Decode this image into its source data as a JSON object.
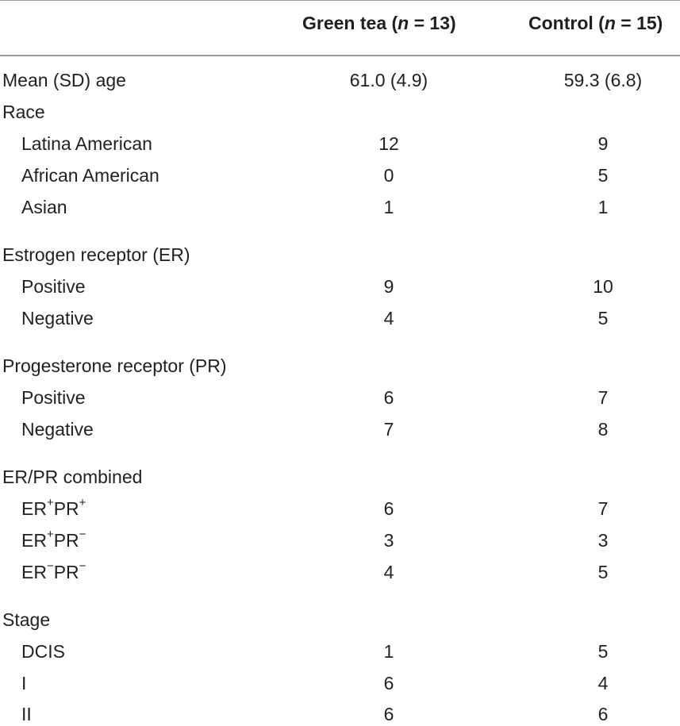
{
  "header": {
    "green_tea_label": "Green tea (",
    "green_tea_n_var": "n",
    "green_tea_n_value": " = 13)",
    "control_label": "Control (",
    "control_n_var": "n",
    "control_n_value": " = 15)"
  },
  "rows": [
    {
      "label": "Mean (SD) age",
      "green": "61.0 (4.9)",
      "control": "59.3 (6.8)"
    },
    {
      "label": "Race",
      "green": "",
      "control": ""
    },
    {
      "label": "Latina American",
      "green": "12",
      "control": "9"
    },
    {
      "label": "African American",
      "green": "0",
      "control": "5"
    },
    {
      "label": "Asian",
      "green": "1",
      "control": "1"
    },
    {
      "label": "Estrogen receptor (ER)",
      "green": "",
      "control": ""
    },
    {
      "label": "Positive",
      "green": "9",
      "control": "10"
    },
    {
      "label": "Negative",
      "green": "4",
      "control": "5"
    },
    {
      "label": "Progesterone receptor (PR)",
      "green": "",
      "control": ""
    },
    {
      "label": "Positive",
      "green": "6",
      "control": "7"
    },
    {
      "label": "Negative",
      "green": "7",
      "control": "8"
    },
    {
      "label": "ER/PR combined",
      "green": "",
      "control": ""
    },
    {
      "label_parts": [
        "ER",
        "+",
        "PR",
        "+"
      ],
      "green": "6",
      "control": "7"
    },
    {
      "label_parts": [
        "ER",
        "+",
        "PR",
        "−"
      ],
      "green": "3",
      "control": "3"
    },
    {
      "label_parts": [
        "ER",
        "−",
        "PR",
        "−"
      ],
      "green": "4",
      "control": "5"
    },
    {
      "label": "Stage",
      "green": "",
      "control": ""
    },
    {
      "label": "DCIS",
      "green": "1",
      "control": "5"
    },
    {
      "label": "I",
      "green": "6",
      "control": "4"
    },
    {
      "label": "II",
      "green": "6",
      "control": "6"
    }
  ]
}
